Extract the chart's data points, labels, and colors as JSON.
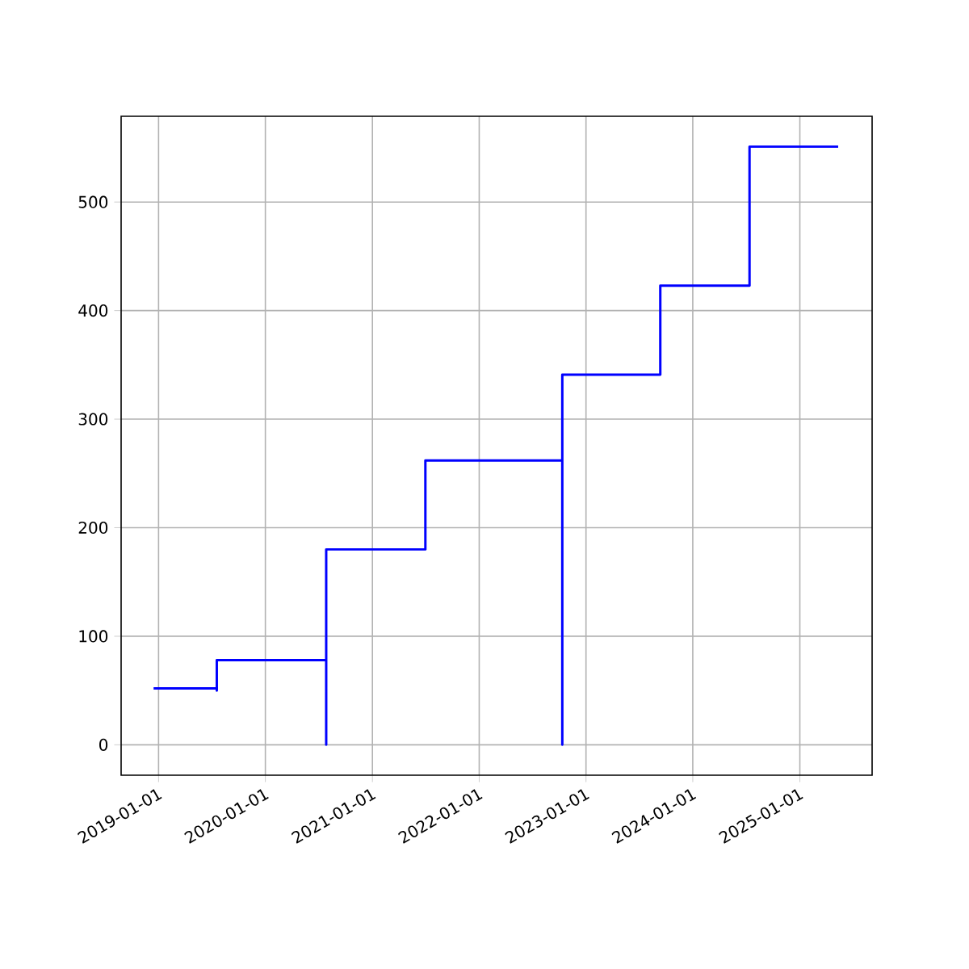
{
  "chart_data": {
    "type": "line",
    "color": "#0000ff",
    "grid": true,
    "x": [
      "2018-12-15",
      "2019-07-19",
      "2019-07-19",
      "2019-07-19",
      "2020-07-27",
      "2020-07-27",
      "2020-07-27",
      "2021-07-01",
      "2021-07-01",
      "2022-10-12",
      "2022-10-12",
      "2022-10-12",
      "2023-09-12",
      "2023-09-12",
      "2024-07-13",
      "2024-07-13",
      "2025-05-12"
    ],
    "values": [
      52,
      52,
      50,
      78,
      78,
      0,
      180,
      180,
      262,
      262,
      0,
      341,
      341,
      423,
      423,
      551,
      551
    ],
    "xlim": [
      "2018-08-26",
      "2025-09-05"
    ],
    "ylim": [
      -28,
      579
    ],
    "xticks": [
      "2019-01-01",
      "2020-01-01",
      "2021-01-01",
      "2022-01-01",
      "2023-01-01",
      "2024-01-01",
      "2025-01-01"
    ],
    "yticks": [
      0,
      100,
      200,
      300,
      400,
      500
    ]
  }
}
